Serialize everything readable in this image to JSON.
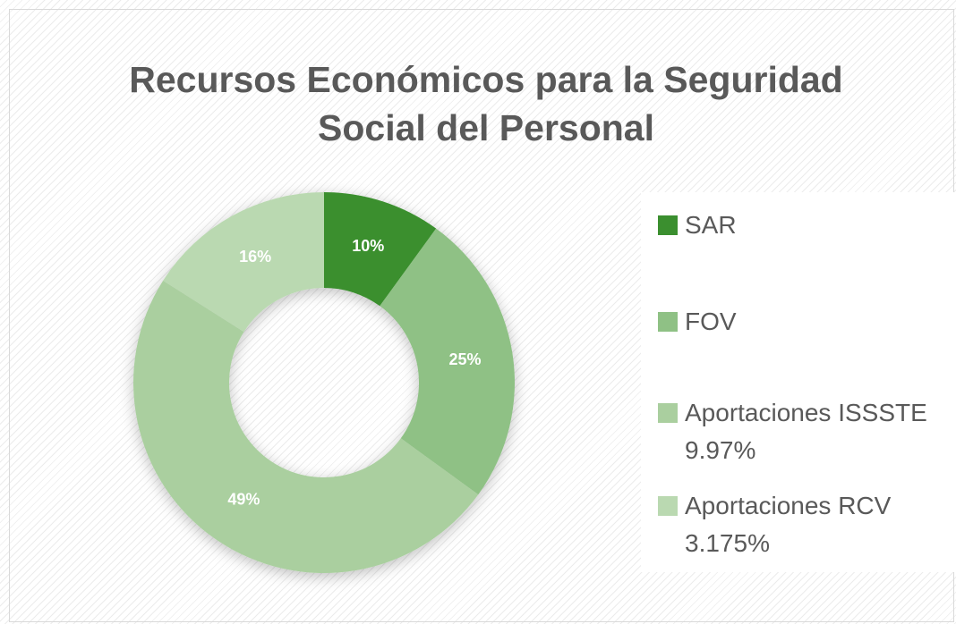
{
  "chart_data": {
    "type": "donut",
    "title": "Recursos Económicos para la Seguridad Social del Personal",
    "categories": [
      "SAR",
      "FOV",
      "Aportaciones ISSSTE 9.97%",
      "Aportaciones RCV 3.175%"
    ],
    "values": [
      10,
      25,
      49,
      16
    ],
    "value_labels": [
      "10%",
      "25%",
      "49%",
      "16%"
    ],
    "colors": [
      "#3b8f2f",
      "#8fc185",
      "#aacf9f",
      "#bad9b1"
    ],
    "legend": "right"
  }
}
